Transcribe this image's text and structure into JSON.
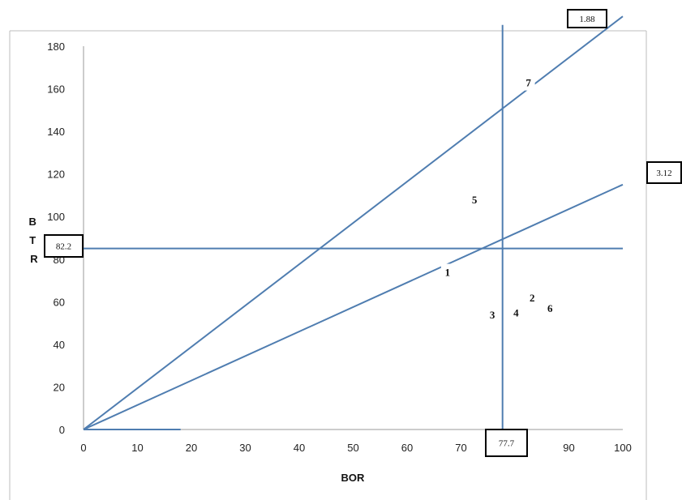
{
  "chart_data": {
    "type": "line",
    "xlabel": "BOR",
    "ylabel": "BTR",
    "xlim": [
      0,
      100
    ],
    "ylim": [
      0,
      180
    ],
    "x_ticks": [
      0,
      10,
      20,
      30,
      40,
      50,
      60,
      70,
      80,
      90,
      100
    ],
    "y_ticks": [
      0,
      20,
      40,
      60,
      80,
      100,
      120,
      140,
      160,
      180
    ],
    "grid": false,
    "legend": "none",
    "line_color": "#4f7db0",
    "series": [
      {
        "x": [
          0,
          100
        ],
        "y": [
          0,
          194
        ]
      },
      {
        "x": [
          0,
          100
        ],
        "y": [
          0,
          115
        ]
      },
      {
        "x": [
          77.7,
          77.7
        ],
        "y": [
          0,
          190
        ]
      },
      {
        "x": [
          0,
          100
        ],
        "y": [
          85,
          85
        ]
      },
      {
        "x": [
          0,
          18
        ],
        "y": [
          0,
          0
        ]
      }
    ],
    "boxed_labels": [
      {
        "text": "1.88"
      },
      {
        "text": "3.12"
      },
      {
        "text": "82.2"
      },
      {
        "text": "77.7"
      }
    ],
    "region_labels": [
      {
        "text": "1",
        "x": 67.5,
        "y": 74
      },
      {
        "text": "2",
        "x": 83.2,
        "y": 62
      },
      {
        "text": "3",
        "x": 75.8,
        "y": 54
      },
      {
        "text": "4",
        "x": 80.2,
        "y": 55
      },
      {
        "text": "5",
        "x": 72.5,
        "y": 108
      },
      {
        "text": "6",
        "x": 86.5,
        "y": 57
      },
      {
        "text": "7",
        "x": 82.5,
        "y": 163
      }
    ]
  }
}
